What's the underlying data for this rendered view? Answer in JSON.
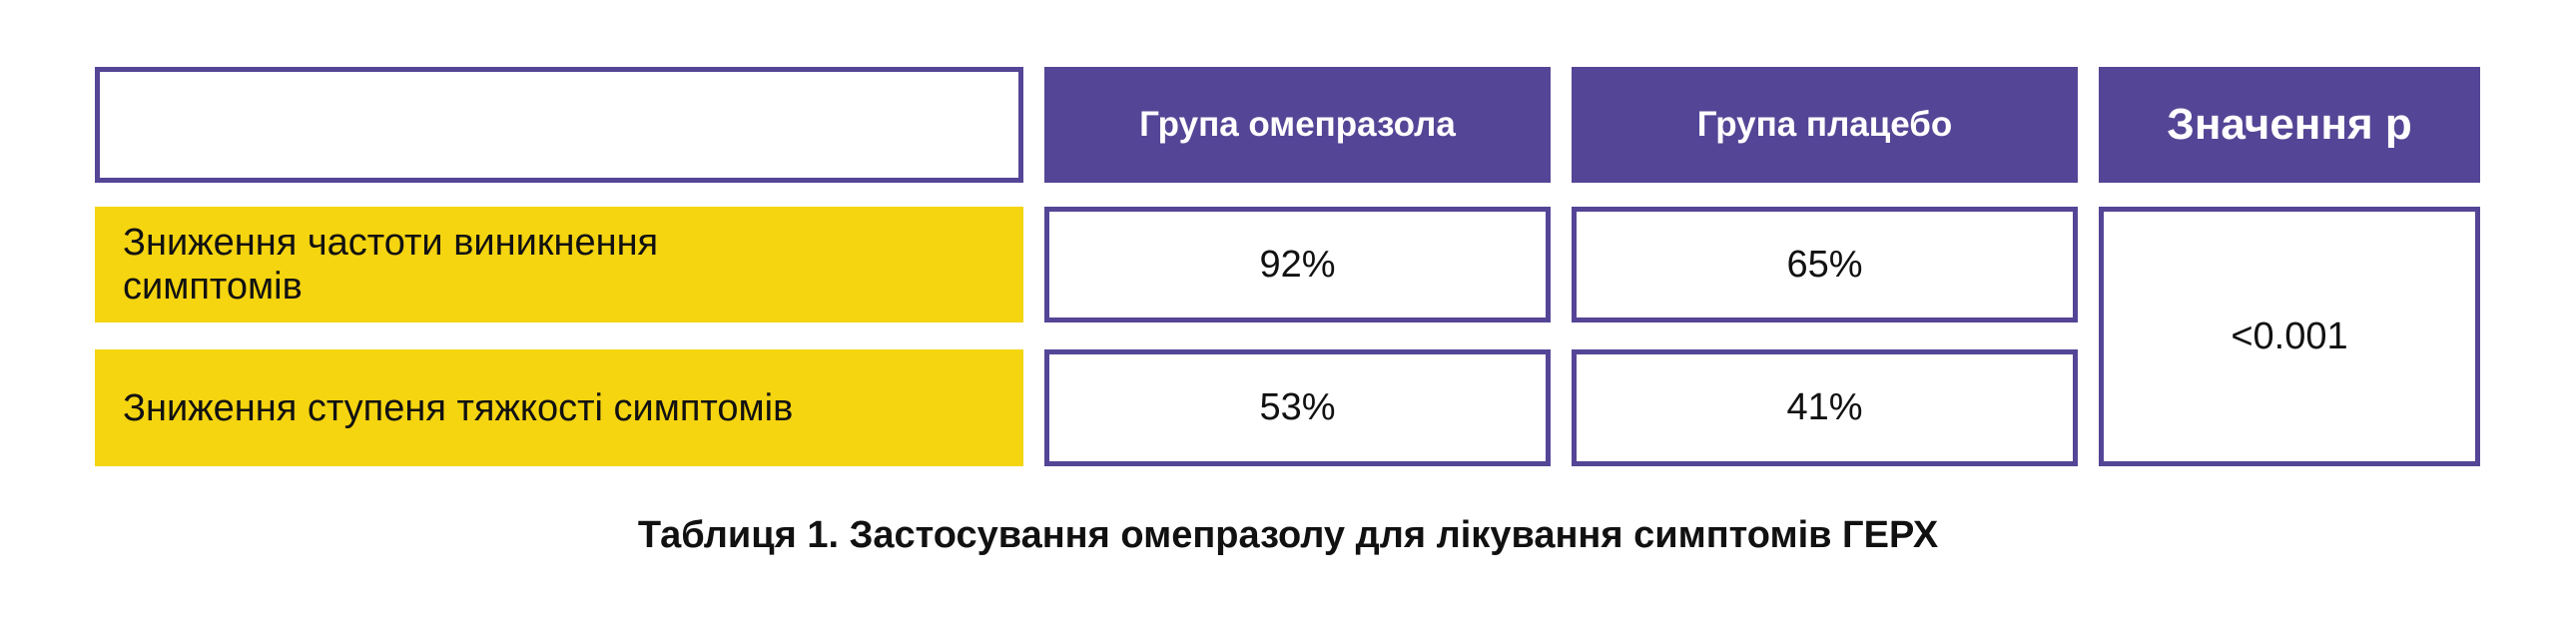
{
  "table": {
    "headers": [
      "",
      "Група омепразола",
      "Група плацебо",
      "Значення р"
    ],
    "rows": [
      {
        "label": "Зниження частоти виникнення симптомів",
        "omeprazole": "92%",
        "placebo": "65%"
      },
      {
        "label": "Зниження ступеня тяжкості симптомів",
        "omeprazole": "53%",
        "placebo": "41%"
      }
    ],
    "p_value": "<0.001"
  },
  "caption": "Таблиця 1. Застосування омепразолу для лікування симптомів ГЕРХ",
  "colors": {
    "header": "#554596",
    "label_bg": "#f5d410"
  }
}
